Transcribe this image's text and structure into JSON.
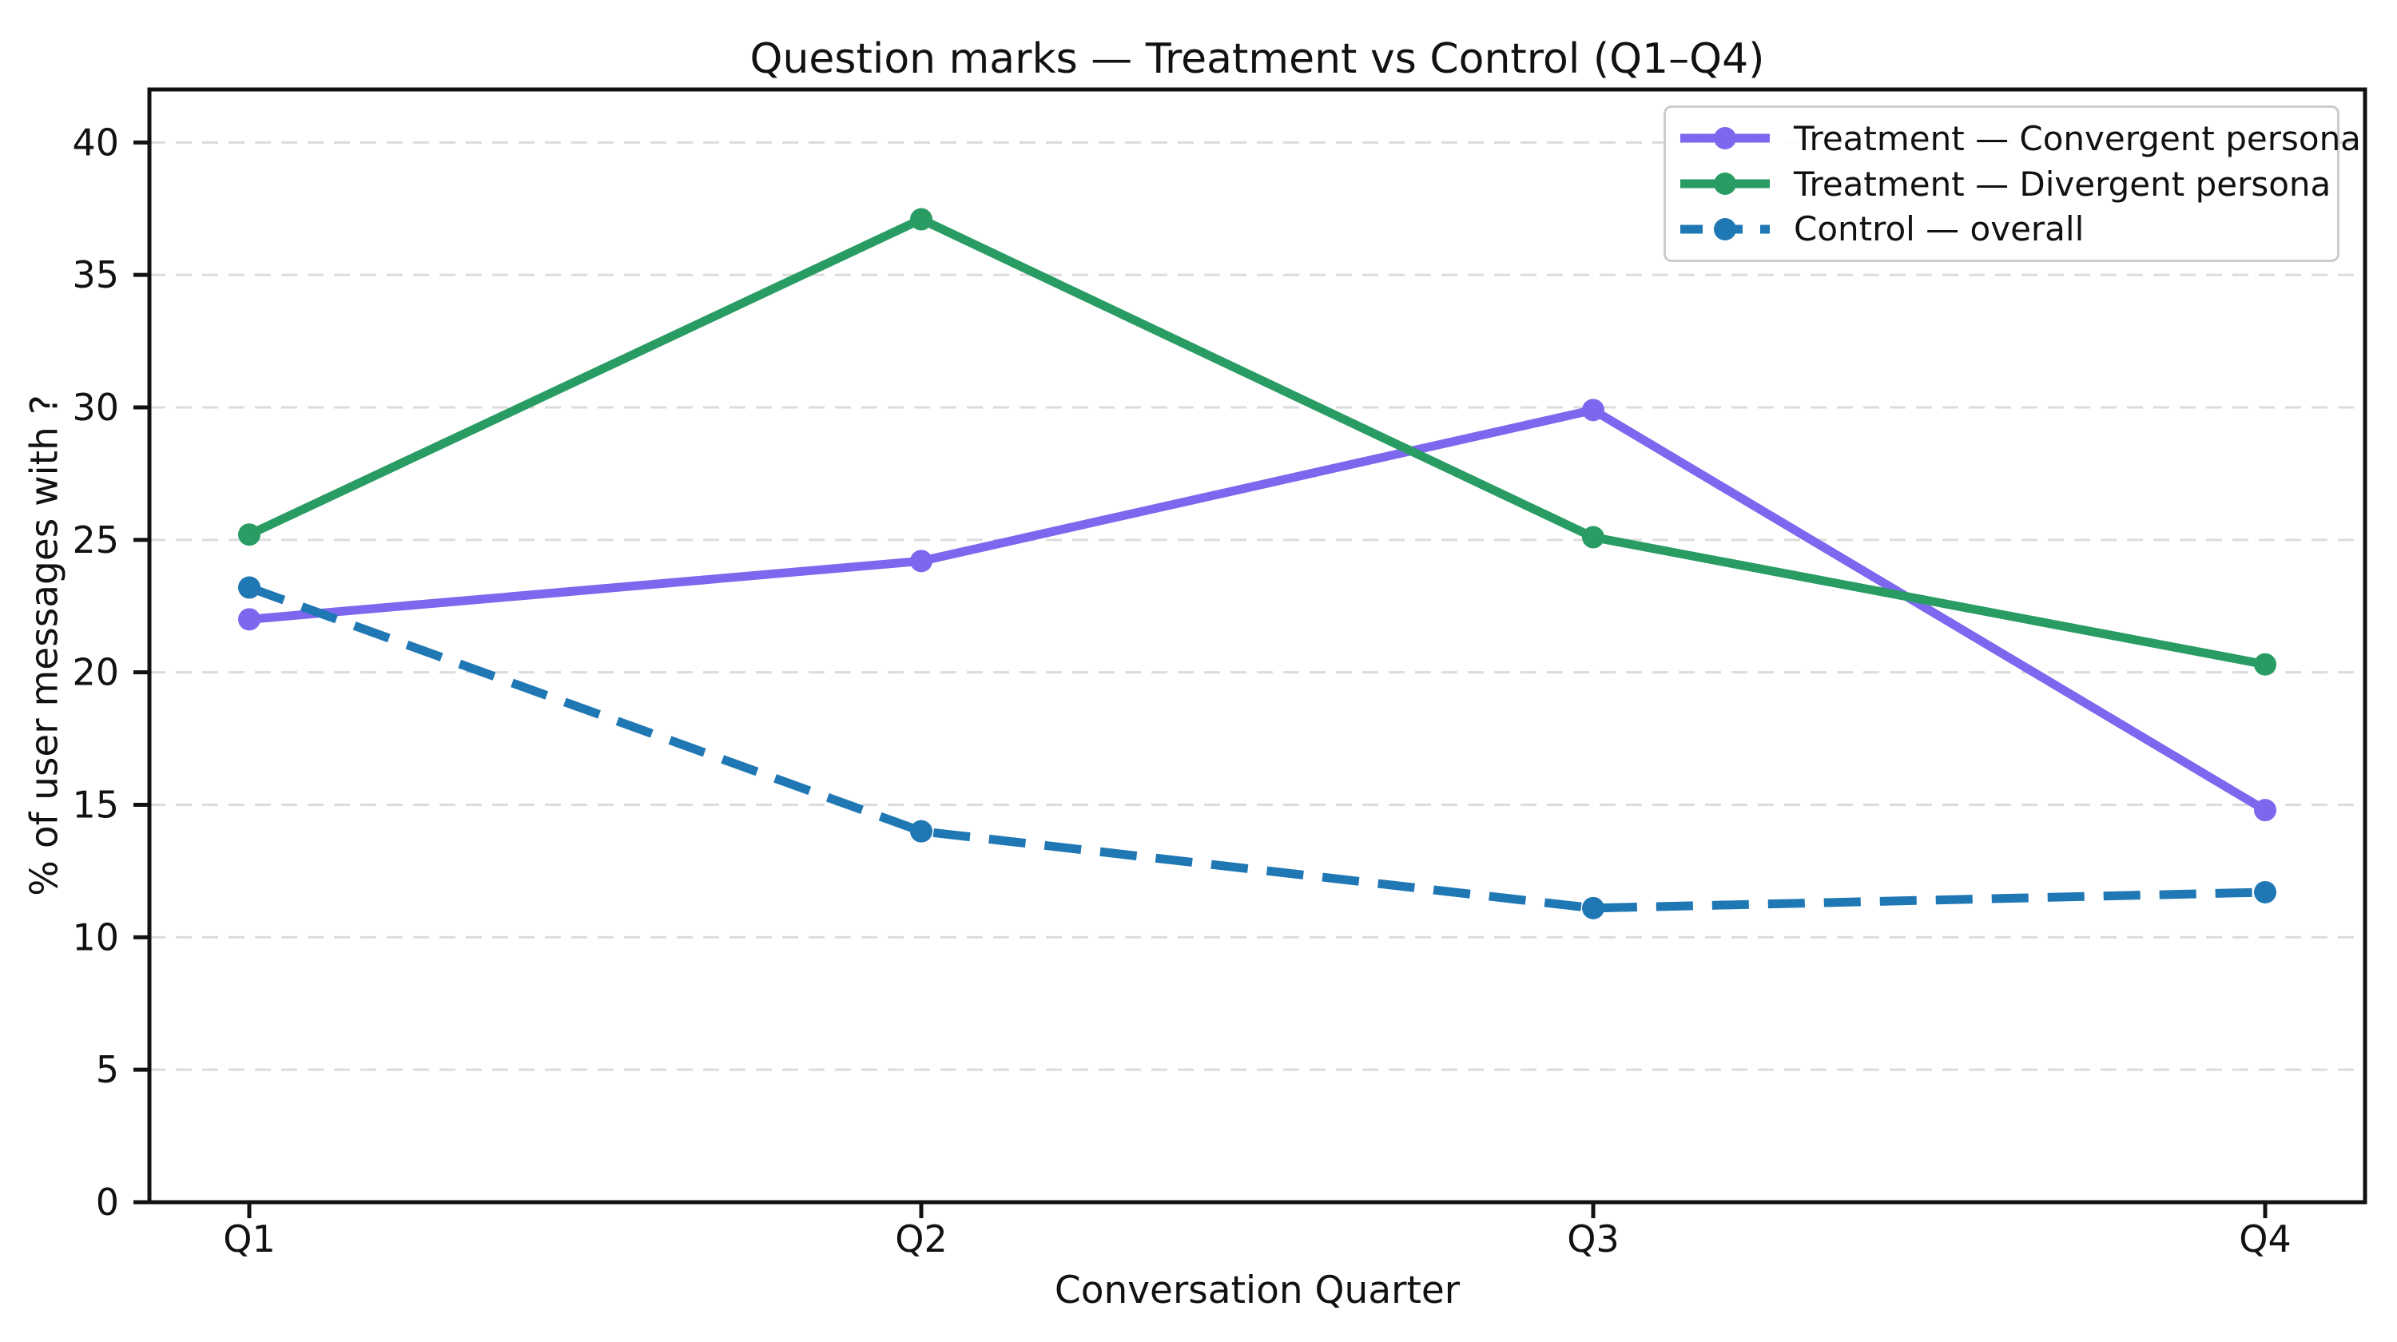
{
  "chart_data": {
    "type": "line",
    "title": "Question marks — Treatment vs Control (Q1–Q4)",
    "xlabel": "Conversation Quarter",
    "ylabel": "% of user messages with ?",
    "categories": [
      "Q1",
      "Q2",
      "Q3",
      "Q4"
    ],
    "ylim": [
      0,
      42
    ],
    "yticks": [
      0,
      5,
      10,
      15,
      20,
      25,
      30,
      35,
      40
    ],
    "grid": "horizontal dashed light-gray",
    "legend_position": "top-right",
    "colors": {
      "gridline": "#dcdcdc",
      "axis": "#111111",
      "legend_border": "#cccccc"
    },
    "series": [
      {
        "name": "Treatment — Convergent persona",
        "values": [
          22.0,
          24.2,
          29.9,
          14.8
        ],
        "color": "#7B68EE",
        "style": "solid",
        "marker": "circle"
      },
      {
        "name": "Treatment — Divergent persona",
        "values": [
          25.2,
          37.1,
          25.1,
          20.3
        ],
        "color": "#299C64",
        "style": "solid",
        "marker": "circle"
      },
      {
        "name": "Control — overall",
        "values": [
          23.2,
          14.0,
          11.1,
          11.7
        ],
        "color": "#1F77B4",
        "style": "dashed",
        "marker": "circle"
      }
    ]
  }
}
